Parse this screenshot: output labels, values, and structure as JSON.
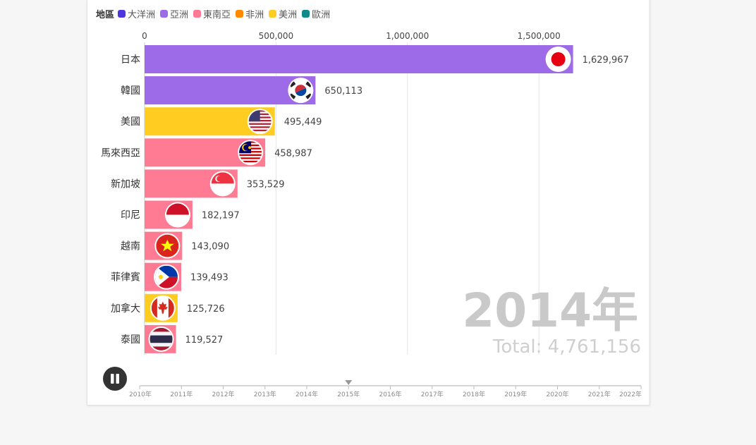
{
  "legend": {
    "title": "地區",
    "items": [
      {
        "label": "大洋洲",
        "color": "#4d35e0"
      },
      {
        "label": "亞洲",
        "color": "#9d6ae8"
      },
      {
        "label": "東南亞",
        "color": "#ff7b94"
      },
      {
        "label": "非洲",
        "color": "#ff8a00"
      },
      {
        "label": "美洲",
        "color": "#ffcc22"
      },
      {
        "label": "歐洲",
        "color": "#0f8a8a"
      }
    ]
  },
  "chart_data": {
    "type": "bar",
    "orientation": "horizontal",
    "categories": [
      "日本",
      "韓國",
      "美國",
      "馬來西亞",
      "新加坡",
      "印尼",
      "越南",
      "菲律賓",
      "加拿大",
      "泰國"
    ],
    "values": [
      1629967,
      650113,
      495449,
      458987,
      353529,
      182197,
      143090,
      139493,
      125726,
      119527
    ],
    "value_labels": [
      "1,629,967",
      "650,113",
      "495,449",
      "458,987",
      "353,529",
      "182,197",
      "143,090",
      "139,493",
      "125,726",
      "119,527"
    ],
    "regions": [
      "亞洲",
      "亞洲",
      "美洲",
      "東南亞",
      "東南亞",
      "東南亞",
      "東南亞",
      "東南亞",
      "美洲",
      "東南亞"
    ],
    "flag_icons": [
      "japan-flag-icon",
      "korea-flag-icon",
      "usa-flag-icon",
      "malaysia-flag-icon",
      "singapore-flag-icon",
      "indonesia-flag-icon",
      "vietnam-flag-icon",
      "philippines-flag-icon",
      "canada-flag-icon",
      "thailand-flag-icon"
    ],
    "x_ticks": [
      0,
      500000,
      1000000,
      1500000
    ],
    "x_tick_labels": [
      "0",
      "500,000",
      "1,000,000",
      "1,500,000"
    ],
    "xlim": [
      0,
      1800000
    ],
    "grid": true,
    "year_label": "2014年",
    "total_label": "Total: 4,761,156"
  },
  "timeline": {
    "years": [
      "2010年",
      "2011年",
      "2012年",
      "2013年",
      "2014年",
      "2015年",
      "2016年",
      "2017年",
      "2018年",
      "2019年",
      "2020年",
      "2021年",
      "2022年"
    ],
    "marker_year": "2015年",
    "play_state": "pause-icon"
  }
}
